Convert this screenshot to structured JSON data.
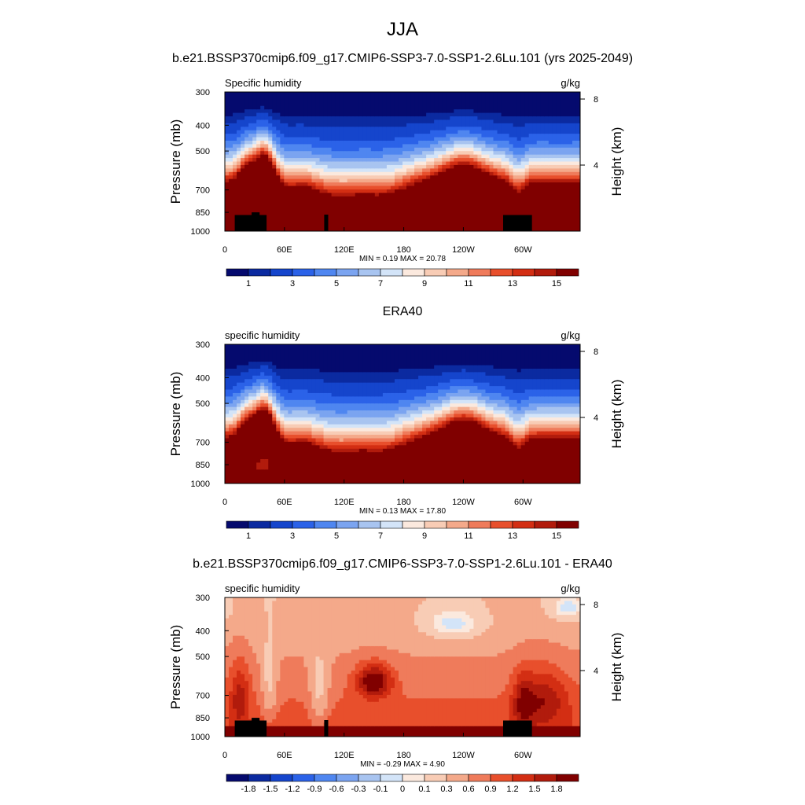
{
  "figure": {
    "title": "JJA",
    "panel1_title": "b.e21.BSSP370cmip6.f09_g17.CMIP6-SSP3-7.0-SSP1-2.6Lu.101 (yrs 2025-2049)",
    "panel2_title": "ERA40",
    "panel3_title": "b.e21.BSSP370cmip6.f09_g17.CMIP6-SSP3-7.0-SSP1-2.6Lu.101 - ERA40"
  },
  "chart_data": [
    {
      "type": "heatmap",
      "left_label": "Specific humidity",
      "units": "g/kg",
      "ylabel": "Pressure (mb)",
      "y2label": "Height (km)",
      "x_ticks": [
        "0",
        "60E",
        "120E",
        "180",
        "120W",
        "60W"
      ],
      "x_tick_lon": [
        0,
        60,
        120,
        180,
        240,
        300
      ],
      "xlim": [
        0,
        357.5
      ],
      "y_ticks": [
        "300",
        "400",
        "500",
        "700",
        "850",
        "1000"
      ],
      "y_tick_values": [
        300,
        400,
        500,
        700,
        850,
        1000
      ],
      "ylim": [
        1000,
        300
      ],
      "height_ticks": [
        "8",
        "4"
      ],
      "height_tick_values": [
        8,
        4
      ],
      "stat_text": "MIN =   0.19  MAX =  20.78",
      "colorbar_labels": [
        "1",
        "3",
        "5",
        "7",
        "9",
        "11",
        "13",
        "15"
      ],
      "colorbar_levels": [
        0.5,
        1,
        2,
        3,
        4,
        5,
        6,
        7,
        8,
        9,
        10,
        11,
        12,
        13,
        14,
        15
      ],
      "colorbar_colors": [
        "#050a6e",
        "#0b2aa0",
        "#1545cc",
        "#2b62e8",
        "#4f86f0",
        "#7ba4f0",
        "#a8c4f0",
        "#d3e4f8",
        "#fbe9de",
        "#f8ccb5",
        "#f4a98a",
        "#ef7b5b",
        "#e84f2c",
        "#d32e13",
        "#b11b0c",
        "#800000"
      ],
      "field_kind": "humidity",
      "topography": true
    },
    {
      "type": "heatmap",
      "left_label": "specific humidity",
      "units": "g/kg",
      "ylabel": "Pressure (mb)",
      "y2label": "Height (km)",
      "x_ticks": [
        "0",
        "60E",
        "120E",
        "180",
        "120W",
        "60W"
      ],
      "x_tick_lon": [
        0,
        60,
        120,
        180,
        240,
        300
      ],
      "xlim": [
        0,
        357.5
      ],
      "y_ticks": [
        "300",
        "400",
        "500",
        "700",
        "850",
        "1000"
      ],
      "y_tick_values": [
        300,
        400,
        500,
        700,
        850,
        1000
      ],
      "ylim": [
        1000,
        300
      ],
      "height_ticks": [
        "8",
        "4"
      ],
      "height_tick_values": [
        8,
        4
      ],
      "stat_text": "MIN =   0.13  MAX =  17.80",
      "colorbar_labels": [
        "1",
        "3",
        "5",
        "7",
        "9",
        "11",
        "13",
        "15"
      ],
      "colorbar_levels": [
        0.5,
        1,
        2,
        3,
        4,
        5,
        6,
        7,
        8,
        9,
        10,
        11,
        12,
        13,
        14,
        15
      ],
      "colorbar_colors": [
        "#050a6e",
        "#0b2aa0",
        "#1545cc",
        "#2b62e8",
        "#4f86f0",
        "#7ba4f0",
        "#a8c4f0",
        "#d3e4f8",
        "#fbe9de",
        "#f8ccb5",
        "#f4a98a",
        "#ef7b5b",
        "#e84f2c",
        "#d32e13",
        "#b11b0c",
        "#800000"
      ],
      "field_kind": "humidity_obs",
      "topography": false
    },
    {
      "type": "heatmap",
      "left_label": "specific humidity",
      "units": "g/kg",
      "ylabel": "Pressure (mb)",
      "y2label": "Height (km)",
      "x_ticks": [
        "0",
        "60E",
        "120E",
        "180",
        "120W",
        "60W"
      ],
      "x_tick_lon": [
        0,
        60,
        120,
        180,
        240,
        300
      ],
      "xlim": [
        0,
        357.5
      ],
      "y_ticks": [
        "300",
        "400",
        "500",
        "700",
        "850",
        "1000"
      ],
      "y_tick_values": [
        300,
        400,
        500,
        700,
        850,
        1000
      ],
      "ylim": [
        1000,
        300
      ],
      "height_ticks": [
        "8",
        "4"
      ],
      "height_tick_values": [
        8,
        4
      ],
      "stat_text": "MIN =  -0.29  MAX =    4.90",
      "colorbar_labels": [
        "-1.8",
        "-1.5",
        "-1.2",
        "-0.9",
        "-0.6",
        "-0.3",
        "-0.1",
        "0",
        "0.1",
        "0.3",
        "0.6",
        "0.9",
        "1.2",
        "1.5",
        "1.8"
      ],
      "colorbar_levels": [
        -1.8,
        -1.5,
        -1.2,
        -0.9,
        -0.6,
        -0.3,
        -0.1,
        0,
        0.1,
        0.3,
        0.6,
        0.9,
        1.2,
        1.5,
        1.8
      ],
      "colorbar_colors": [
        "#050a6e",
        "#0b2aa0",
        "#1545cc",
        "#2b62e8",
        "#4f86f0",
        "#7ba4f0",
        "#a8c4f0",
        "#d3e4f8",
        "#fbe9de",
        "#f8ccb5",
        "#f4a98a",
        "#ef7b5b",
        "#e84f2c",
        "#d32e13",
        "#b11b0c",
        "#800000"
      ],
      "field_kind": "difference",
      "topography": true
    }
  ]
}
